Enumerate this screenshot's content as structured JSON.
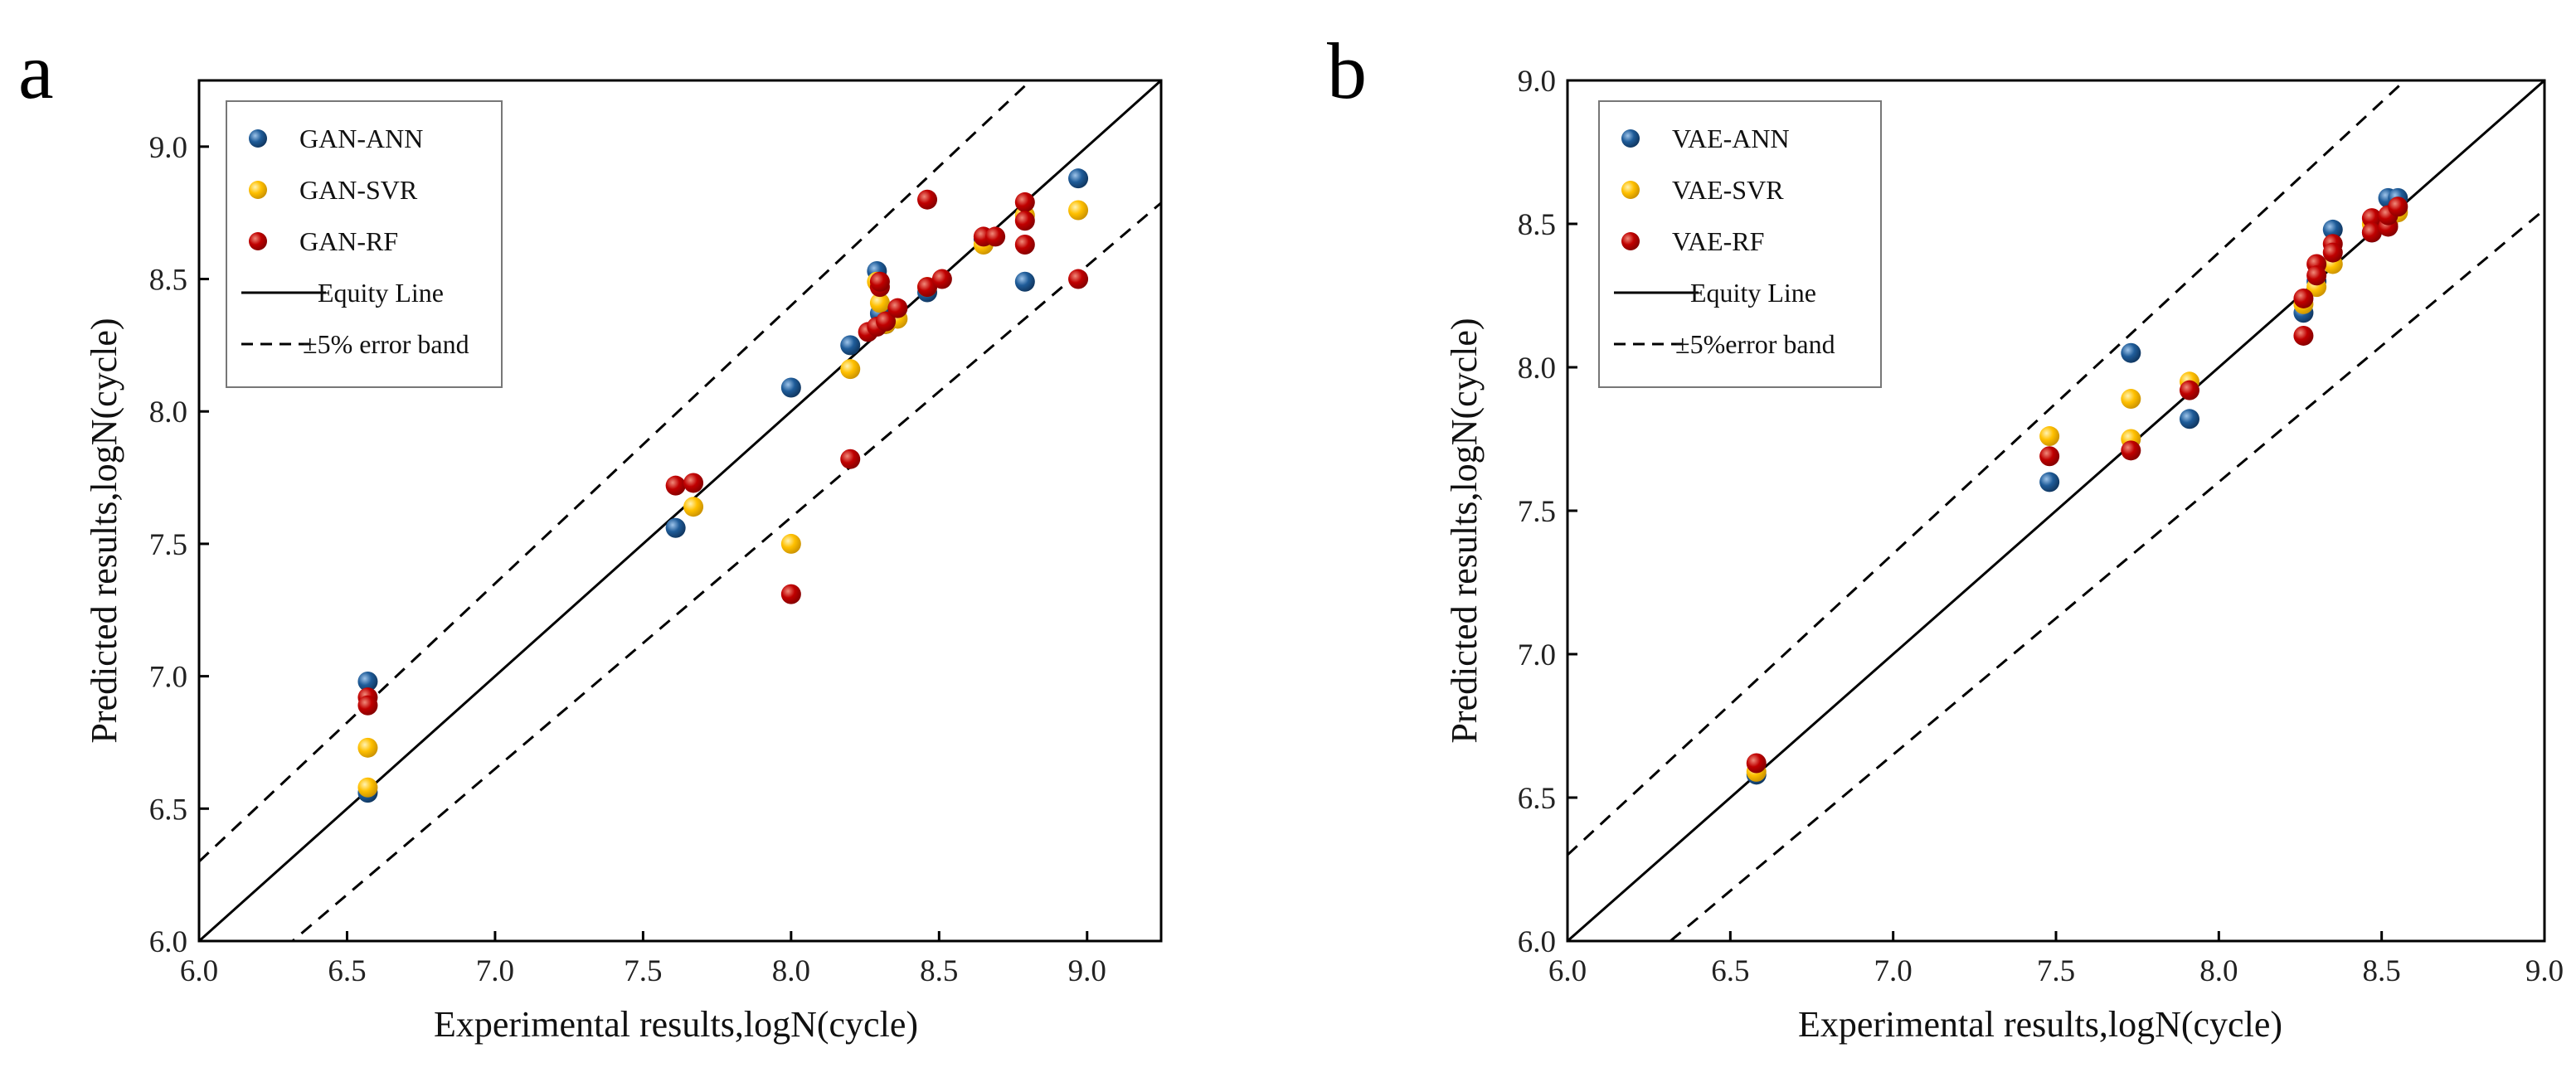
{
  "colors": {
    "ann": "#1f5c99",
    "svr": "#ffc000",
    "rf": "#c00000"
  },
  "chart_data": [
    {
      "panel": "a",
      "type": "scatter",
      "xlabel": "Experimental results,logN(cycle)",
      "ylabel": "Predicted results,logN(cycle)",
      "xlim": [
        6.0,
        9.25
      ],
      "ylim": [
        6.0,
        9.25
      ],
      "xticks": [
        "6.0",
        "6.5",
        "7.0",
        "7.5",
        "8.0",
        "8.5",
        "9.0"
      ],
      "yticks": [
        "6.0",
        "6.5",
        "7.0",
        "7.5",
        "8.0",
        "8.5",
        "9.0"
      ],
      "legend_position": "top-left",
      "equity_label": "Equity Line",
      "band_label": "±5% error band",
      "series": [
        {
          "name": "GAN-ANN",
          "key": "ann",
          "x": [
            6.57,
            6.57,
            7.61,
            8.0,
            8.2,
            8.29,
            8.3,
            8.32,
            8.46,
            8.65,
            8.79,
            8.97
          ],
          "y": [
            6.98,
            6.56,
            7.56,
            8.09,
            8.25,
            8.53,
            8.37,
            8.33,
            8.45,
            8.65,
            8.49,
            8.88
          ]
        },
        {
          "name": "GAN-SVR",
          "key": "svr",
          "x": [
            6.57,
            6.57,
            7.67,
            8.0,
            8.2,
            8.29,
            8.3,
            8.32,
            8.36,
            8.46,
            8.65,
            8.79,
            8.97
          ],
          "y": [
            6.73,
            6.58,
            7.64,
            7.5,
            8.16,
            8.49,
            8.41,
            8.33,
            8.35,
            8.47,
            8.63,
            8.74,
            8.76
          ]
        },
        {
          "name": "GAN-RF",
          "key": "rf",
          "x": [
            6.57,
            6.57,
            7.61,
            7.67,
            8.0,
            8.2,
            8.26,
            8.29,
            8.3,
            8.3,
            8.32,
            8.36,
            8.46,
            8.46,
            8.51,
            8.65,
            8.69,
            8.79,
            8.79,
            8.79,
            8.97
          ],
          "y": [
            6.92,
            6.89,
            7.72,
            7.73,
            7.31,
            7.82,
            8.3,
            8.32,
            8.47,
            8.49,
            8.34,
            8.39,
            8.8,
            8.47,
            8.5,
            8.66,
            8.66,
            8.79,
            8.72,
            8.63,
            8.5
          ]
        }
      ]
    },
    {
      "panel": "b",
      "type": "scatter",
      "xlabel": "Experimental results,logN(cycle)",
      "ylabel": "Predicted results,logN(cycle)",
      "xlim": [
        6.0,
        9.0
      ],
      "ylim": [
        6.0,
        9.0
      ],
      "xticks": [
        "6.0",
        "6.5",
        "7.0",
        "7.5",
        "8.0",
        "8.5",
        "9.0"
      ],
      "yticks": [
        "6.0",
        "6.5",
        "7.0",
        "7.5",
        "8.0",
        "8.5",
        "9.0"
      ],
      "legend_position": "top-left",
      "equity_label": "Equity Line",
      "band_label": "±5%error band",
      "series": [
        {
          "name": "VAE-ANN",
          "key": "ann",
          "x": [
            6.58,
            7.48,
            7.73,
            7.91,
            8.26,
            8.3,
            8.35,
            8.47,
            8.52,
            8.55
          ],
          "y": [
            6.58,
            7.6,
            8.05,
            7.82,
            8.19,
            8.3,
            8.48,
            8.47,
            8.59,
            8.59
          ]
        },
        {
          "name": "VAE-SVR",
          "key": "svr",
          "x": [
            6.58,
            7.48,
            7.73,
            7.73,
            7.91,
            8.26,
            8.3,
            8.35,
            8.47,
            8.52,
            8.55
          ],
          "y": [
            6.59,
            7.76,
            7.89,
            7.75,
            7.95,
            8.22,
            8.28,
            8.36,
            8.5,
            8.5,
            8.54
          ]
        },
        {
          "name": "VAE-RF",
          "key": "rf",
          "x": [
            6.58,
            7.48,
            7.73,
            7.91,
            8.26,
            8.26,
            8.3,
            8.3,
            8.35,
            8.35,
            8.47,
            8.47,
            8.52,
            8.52,
            8.55
          ],
          "y": [
            6.62,
            7.69,
            7.71,
            7.92,
            8.24,
            8.11,
            8.36,
            8.32,
            8.43,
            8.4,
            8.52,
            8.47,
            8.49,
            8.53,
            8.56
          ]
        }
      ]
    }
  ]
}
